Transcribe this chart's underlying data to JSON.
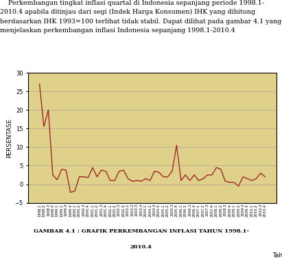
{
  "title_line1": "GAMBAR 4.1 : GRAFIK PERKEMBANGAN INFLASI TAHUN 1998.1-",
  "title_line2": "2010.4",
  "ylabel": "PERSENTASE",
  "xlabel": "Tahun",
  "ylim": [
    -5,
    30
  ],
  "yticks": [
    -5,
    0,
    5,
    10,
    15,
    20,
    25,
    30
  ],
  "line_color": "#A0282A",
  "plot_bg_color": "#DFD08A",
  "outer_bg_color": "#FFFFFF",
  "border_color": "#000000",
  "paragraph_text": "    Perkembangan tingkat inflasi quartal di Indonesia sepanjang periode 1998.1-\n2010.4 apabila ditinjau dari segi (Indek Harga Konsumen) IHK yang dihitung\nberdasarkan IHK 1993=100 terlihat tidak stabil. Dapat dilihat pada gambar 4.1 yang\nmenjelaskan perkembangan inflasi Indonesia sepanjang 1998.1-2010.4",
  "labels": [
    "1998.1",
    "1998.2",
    "1998.3",
    "1998.4",
    "1999.1",
    "1999.2",
    "1999.3",
    "1999.4",
    "2000.1",
    "2000.2",
    "2000.3",
    "2000.4",
    "2001.1",
    "2001.2",
    "2001.3",
    "2001.4",
    "2002.1",
    "2002.2",
    "2002.3",
    "2002.4",
    "2003.1",
    "2003.2",
    "2003.3",
    "2003.4",
    "2004.1",
    "2004.2",
    "2004.3",
    "2004.4",
    "2005.1",
    "2005.2",
    "2005.3",
    "2005.4",
    "2006.1",
    "2006.2",
    "2006.3",
    "2006.4",
    "2007.1",
    "2007.2",
    "2007.3",
    "2007.4",
    "2008.1",
    "2008.2",
    "2008.3",
    "2008.4",
    "2009.1",
    "2009.2",
    "2009.3",
    "2009.4",
    "2010.1",
    "2010.2",
    "2010.3",
    "2010.4"
  ],
  "values": [
    27.0,
    15.5,
    20.0,
    2.5,
    1.2,
    4.0,
    3.8,
    -2.2,
    -1.8,
    2.0,
    2.0,
    1.8,
    4.5,
    2.0,
    3.8,
    3.5,
    1.0,
    1.0,
    3.5,
    3.8,
    1.5,
    0.8,
    1.0,
    0.8,
    1.5,
    1.0,
    3.5,
    3.2,
    2.0,
    2.0,
    3.5,
    10.5,
    1.0,
    2.5,
    1.0,
    2.5,
    1.0,
    1.5,
    2.5,
    2.5,
    4.5,
    4.0,
    0.8,
    0.5,
    0.5,
    -0.5,
    2.0,
    1.5,
    1.0,
    1.5,
    3.0,
    2.0
  ]
}
